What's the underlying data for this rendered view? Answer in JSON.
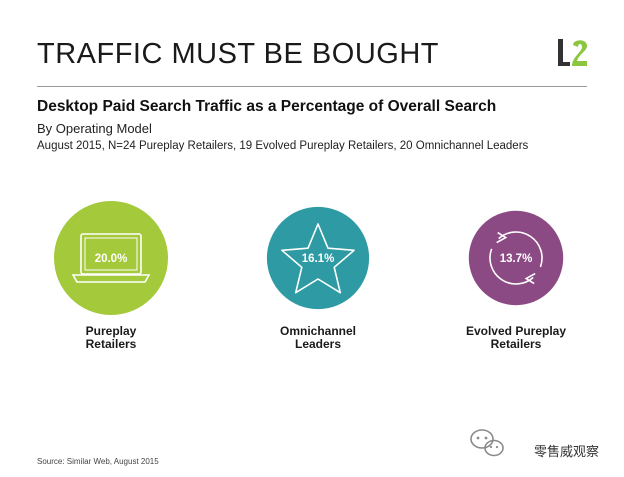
{
  "header": {
    "title": "TRAFFIC MUST BE BOUGHT",
    "logo_text": "L2"
  },
  "subtitle": {
    "main": "Desktop Paid Search Traffic as a Percentage of Overall Search",
    "sub": "By Operating Model",
    "note": "August 2015, N=24 Pureplay Retailers, 19 Evolved Pureplay Retailers, 20 Omnichannel Leaders"
  },
  "footer": {
    "source": "Source: Similar Web, August 2015",
    "watermark_text": "零售威观察"
  },
  "colors": {
    "pureplay": "#a4c93a",
    "omnichannel": "#2e9aa3",
    "evolved": "#8c4a84",
    "logo_green": "#8cc63f",
    "logo_dark": "#333333"
  },
  "chart_data": {
    "type": "bar",
    "title": "Desktop Paid Search Traffic as a Percentage of Overall Search",
    "categories": [
      "Pureplay\nRetailers",
      "Omnichannel\nLeaders",
      "Evolved Pureplay\nRetailers"
    ],
    "values": [
      20.0,
      16.1,
      13.7
    ],
    "value_labels": [
      "20.0%",
      "16.1%",
      "13.7%"
    ],
    "icons": [
      "laptop-icon",
      "star-icon",
      "cycle-arrows-icon"
    ],
    "colors": [
      "#a4c93a",
      "#2e9aa3",
      "#8c4a84"
    ],
    "unit": "%"
  }
}
